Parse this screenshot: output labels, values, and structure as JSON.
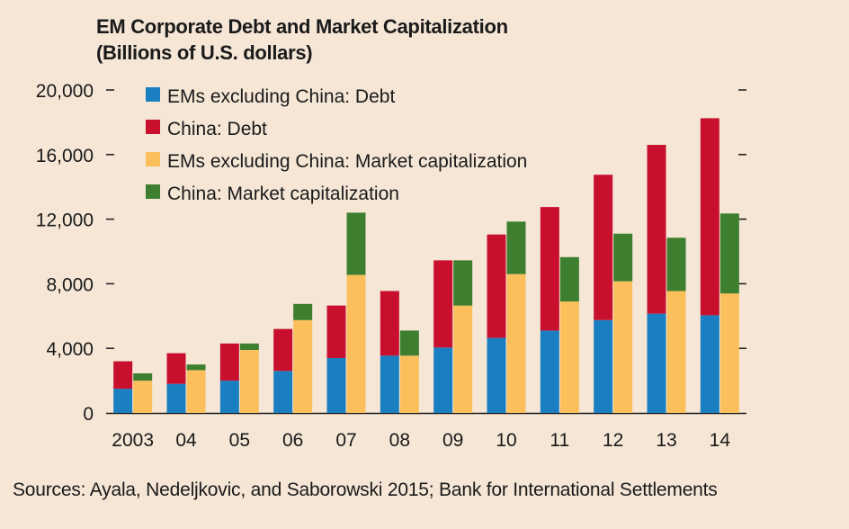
{
  "chart_data": {
    "type": "bar",
    "title": "EM Corporate Debt and Market Capitalization",
    "subtitle": "(Billions of U.S. dollars)",
    "categories": [
      "2003",
      "04",
      "05",
      "06",
      "07",
      "08",
      "09",
      "10",
      "11",
      "12",
      "13",
      "14"
    ],
    "ylim": [
      0,
      20000
    ],
    "yticks": [
      0,
      4000,
      8000,
      12000,
      16000,
      20000
    ],
    "ytick_labels": [
      "0",
      "4,000",
      "8,000",
      "12,000",
      "16,000",
      "20,000"
    ],
    "grid": false,
    "legend_position": "top-left",
    "stacks": [
      {
        "name": "debt",
        "series": [
          {
            "name": "EMs excluding China: Debt",
            "color": "#1a7fc1",
            "values": [
              1500,
              1800,
              2000,
              2600,
              3400,
              3550,
              4050,
              4650,
              5100,
              5750,
              6150,
              6050
            ]
          },
          {
            "name": "China: Debt",
            "color": "#c8102e",
            "values": [
              1700,
              1900,
              2300,
              2600,
              3250,
              4000,
              5400,
              6400,
              7650,
              9000,
              10450,
              12200
            ]
          }
        ]
      },
      {
        "name": "market_capitalization",
        "series": [
          {
            "name": "EMs excluding China: Market capitalization",
            "color": "#fbbf5c",
            "values": [
              2000,
              2650,
              3900,
              5750,
              8550,
              3550,
              6650,
              8600,
              6900,
              8150,
              7550,
              7400
            ]
          },
          {
            "name": "China: Market capitalization",
            "color": "#3d7f2e",
            "values": [
              450,
              350,
              400,
              1000,
              3850,
              1550,
              2800,
              3250,
              2750,
              2950,
              3300,
              4950
            ]
          }
        ]
      }
    ]
  },
  "source_text": "Sources: Ayala, Nedeljkovic, and Saborowski 2015; Bank for International Settlements"
}
